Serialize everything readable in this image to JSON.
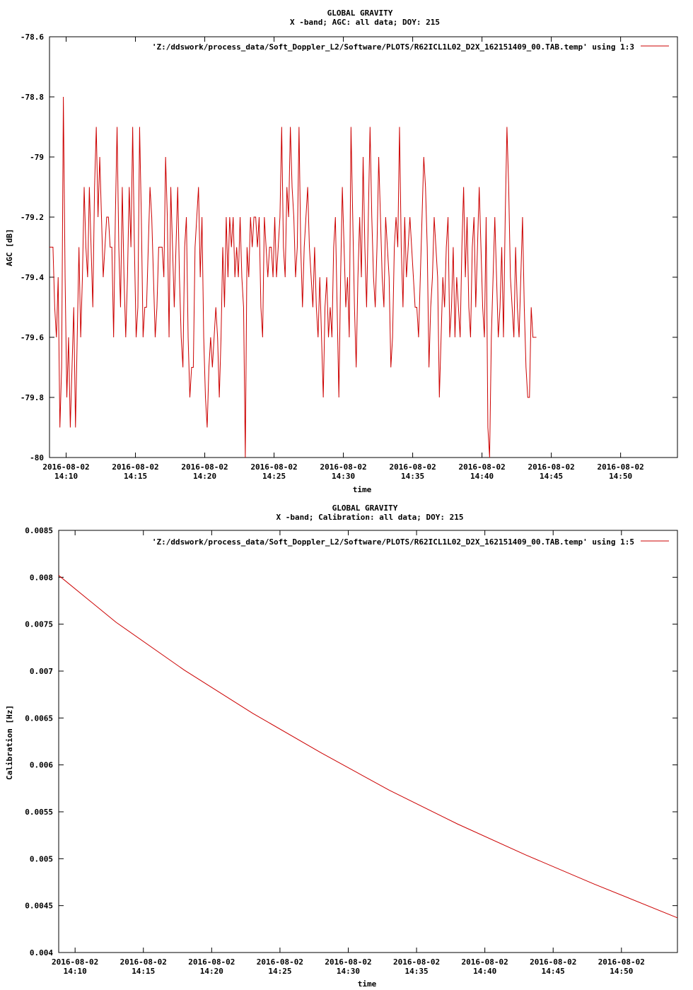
{
  "chart_data": [
    {
      "type": "line",
      "title": "GLOBAL GRAVITY",
      "subtitle": "X -band; AGC: all data; DOY: 215",
      "xlabel": "time",
      "ylabel": "AGC [dB]",
      "ylim": [
        -80,
        -78.6
      ],
      "yticks": [
        "-78.6",
        "-78.8",
        "-79",
        "-79.2",
        "-79.4",
        "-79.6",
        "-79.8",
        "-80"
      ],
      "ytick_values": [
        -78.6,
        -78.8,
        -79.0,
        -79.2,
        -79.4,
        -79.6,
        -79.8,
        -80.0
      ],
      "xlim_minutes": [
        8.8,
        54.1
      ],
      "xtick_minutes": [
        10,
        15,
        20,
        25,
        30,
        35,
        40,
        45,
        50
      ],
      "xtick_date": "2016-08-02",
      "xtick_times": [
        "14:10",
        "14:15",
        "14:20",
        "14:25",
        "14:30",
        "14:35",
        "14:40",
        "14:45",
        "14:50"
      ],
      "x_unit": "minutes after 14:00 on 2016-08-02",
      "grid": false,
      "legend_position": "top-right",
      "series": [
        {
          "name": "'Z:/ddswork/process_data/Soft_Doppler_L2/Software/PLOTS/R62ICL1L02_D2X_162151409_00.TAB.temp' using 1:3",
          "color": "#cc0000",
          "x_start": 8.8,
          "x_step": 0.125,
          "values": [
            -79.3,
            -79.3,
            -79.3,
            -79.5,
            -79.6,
            -79.4,
            -79.9,
            -79.7,
            -78.8,
            -79.4,
            -79.8,
            -79.6,
            -79.9,
            -79.7,
            -79.5,
            -79.9,
            -79.6,
            -79.3,
            -79.6,
            -79.4,
            -79.1,
            -79.3,
            -79.4,
            -79.1,
            -79.3,
            -79.5,
            -79.1,
            -78.9,
            -79.2,
            -79.0,
            -79.2,
            -79.4,
            -79.3,
            -79.2,
            -79.2,
            -79.3,
            -79.3,
            -79.6,
            -79.2,
            -78.9,
            -79.3,
            -79.5,
            -79.1,
            -79.4,
            -79.6,
            -79.4,
            -79.1,
            -79.3,
            -78.9,
            -79.3,
            -79.6,
            -79.5,
            -78.9,
            -79.2,
            -79.6,
            -79.5,
            -79.5,
            -79.3,
            -79.1,
            -79.2,
            -79.4,
            -79.6,
            -79.5,
            -79.3,
            -79.3,
            -79.3,
            -79.4,
            -79.0,
            -79.2,
            -79.6,
            -79.1,
            -79.3,
            -79.5,
            -79.3,
            -79.1,
            -79.4,
            -79.6,
            -79.7,
            -79.3,
            -79.2,
            -79.6,
            -79.8,
            -79.7,
            -79.7,
            -79.3,
            -79.2,
            -79.1,
            -79.4,
            -79.2,
            -79.6,
            -79.8,
            -79.9,
            -79.7,
            -79.6,
            -79.7,
            -79.6,
            -79.5,
            -79.6,
            -79.8,
            -79.6,
            -79.3,
            -79.5,
            -79.2,
            -79.4,
            -79.2,
            -79.3,
            -79.2,
            -79.4,
            -79.3,
            -79.4,
            -79.2,
            -79.4,
            -79.5,
            -80.0,
            -79.3,
            -79.4,
            -79.2,
            -79.3,
            -79.2,
            -79.2,
            -79.3,
            -79.2,
            -79.5,
            -79.6,
            -79.2,
            -79.3,
            -79.4,
            -79.3,
            -79.3,
            -79.4,
            -79.2,
            -79.4,
            -79.3,
            -79.2,
            -78.9,
            -79.3,
            -79.4,
            -79.1,
            -79.2,
            -78.9,
            -79.1,
            -79.2,
            -79.4,
            -79.3,
            -78.9,
            -79.3,
            -79.5,
            -79.3,
            -79.2,
            -79.1,
            -79.3,
            -79.4,
            -79.5,
            -79.3,
            -79.5,
            -79.6,
            -79.4,
            -79.6,
            -79.8,
            -79.5,
            -79.4,
            -79.6,
            -79.5,
            -79.6,
            -79.3,
            -79.2,
            -79.5,
            -79.8,
            -79.4,
            -79.1,
            -79.3,
            -79.5,
            -79.4,
            -79.6,
            -78.9,
            -79.2,
            -79.5,
            -79.7,
            -79.4,
            -79.2,
            -79.4,
            -79.0,
            -79.3,
            -79.5,
            -79.2,
            -78.9,
            -79.2,
            -79.4,
            -79.5,
            -79.3,
            -79.0,
            -79.2,
            -79.4,
            -79.5,
            -79.2,
            -79.3,
            -79.4,
            -79.7,
            -79.6,
            -79.3,
            -79.2,
            -79.3,
            -78.9,
            -79.3,
            -79.5,
            -79.2,
            -79.4,
            -79.3,
            -79.2,
            -79.3,
            -79.4,
            -79.5,
            -79.5,
            -79.6,
            -79.4,
            -79.2,
            -79.0,
            -79.1,
            -79.3,
            -79.7,
            -79.5,
            -79.4,
            -79.2,
            -79.3,
            -79.4,
            -79.8,
            -79.6,
            -79.4,
            -79.5,
            -79.3,
            -79.2,
            -79.6,
            -79.5,
            -79.3,
            -79.6,
            -79.4,
            -79.5,
            -79.6,
            -79.3,
            -79.1,
            -79.4,
            -79.2,
            -79.5,
            -79.6,
            -79.3,
            -79.2,
            -79.5,
            -79.3,
            -79.1,
            -79.3,
            -79.5,
            -79.6,
            -79.2,
            -79.9,
            -80.0,
            -79.6,
            -79.4,
            -79.2,
            -79.4,
            -79.6,
            -79.5,
            -79.3,
            -79.6,
            -79.2,
            -78.9,
            -79.1,
            -79.4,
            -79.5,
            -79.6,
            -79.3,
            -79.5,
            -79.6,
            -79.4,
            -79.2,
            -79.5,
            -79.7,
            -79.8,
            -79.8,
            -79.5,
            -79.6,
            -79.6,
            -79.6
          ]
        }
      ]
    },
    {
      "type": "line",
      "title": "GLOBAL GRAVITY",
      "subtitle": "X -band; Calibration: all data; DOY: 215",
      "xlabel": "time",
      "ylabel": "Calibration [Hz]",
      "ylim": [
        0.004,
        0.0085
      ],
      "yticks": [
        "0.0085",
        "0.008",
        "0.0075",
        "0.007",
        "0.0065",
        "0.006",
        "0.0055",
        "0.005",
        "0.0045",
        "0.004"
      ],
      "ytick_values": [
        0.0085,
        0.008,
        0.0075,
        0.007,
        0.0065,
        0.006,
        0.0055,
        0.005,
        0.0045,
        0.004
      ],
      "xlim_minutes": [
        8.8,
        54.1
      ],
      "xtick_minutes": [
        10,
        15,
        20,
        25,
        30,
        35,
        40,
        45,
        50
      ],
      "xtick_date": "2016-08-02",
      "xtick_times": [
        "14:10",
        "14:15",
        "14:20",
        "14:25",
        "14:30",
        "14:35",
        "14:40",
        "14:45",
        "14:50"
      ],
      "x_unit": "minutes after 14:00 on 2016-08-02",
      "grid": false,
      "legend_position": "top-right",
      "series": [
        {
          "name": "'Z:/ddswork/process_data/Soft_Doppler_L2/Software/PLOTS/R62ICL1L02_D2X_162151409_00.TAB.temp' using 1:5",
          "color": "#cc0000",
          "x": [
            8.8,
            13.0,
            18.0,
            23.0,
            28.0,
            33.0,
            38.0,
            43.0,
            48.0,
            54.1
          ],
          "values": [
            0.00802,
            0.00752,
            0.00701,
            0.00655,
            0.00613,
            0.00573,
            0.00537,
            0.00504,
            0.00473,
            0.00437
          ]
        }
      ]
    }
  ]
}
